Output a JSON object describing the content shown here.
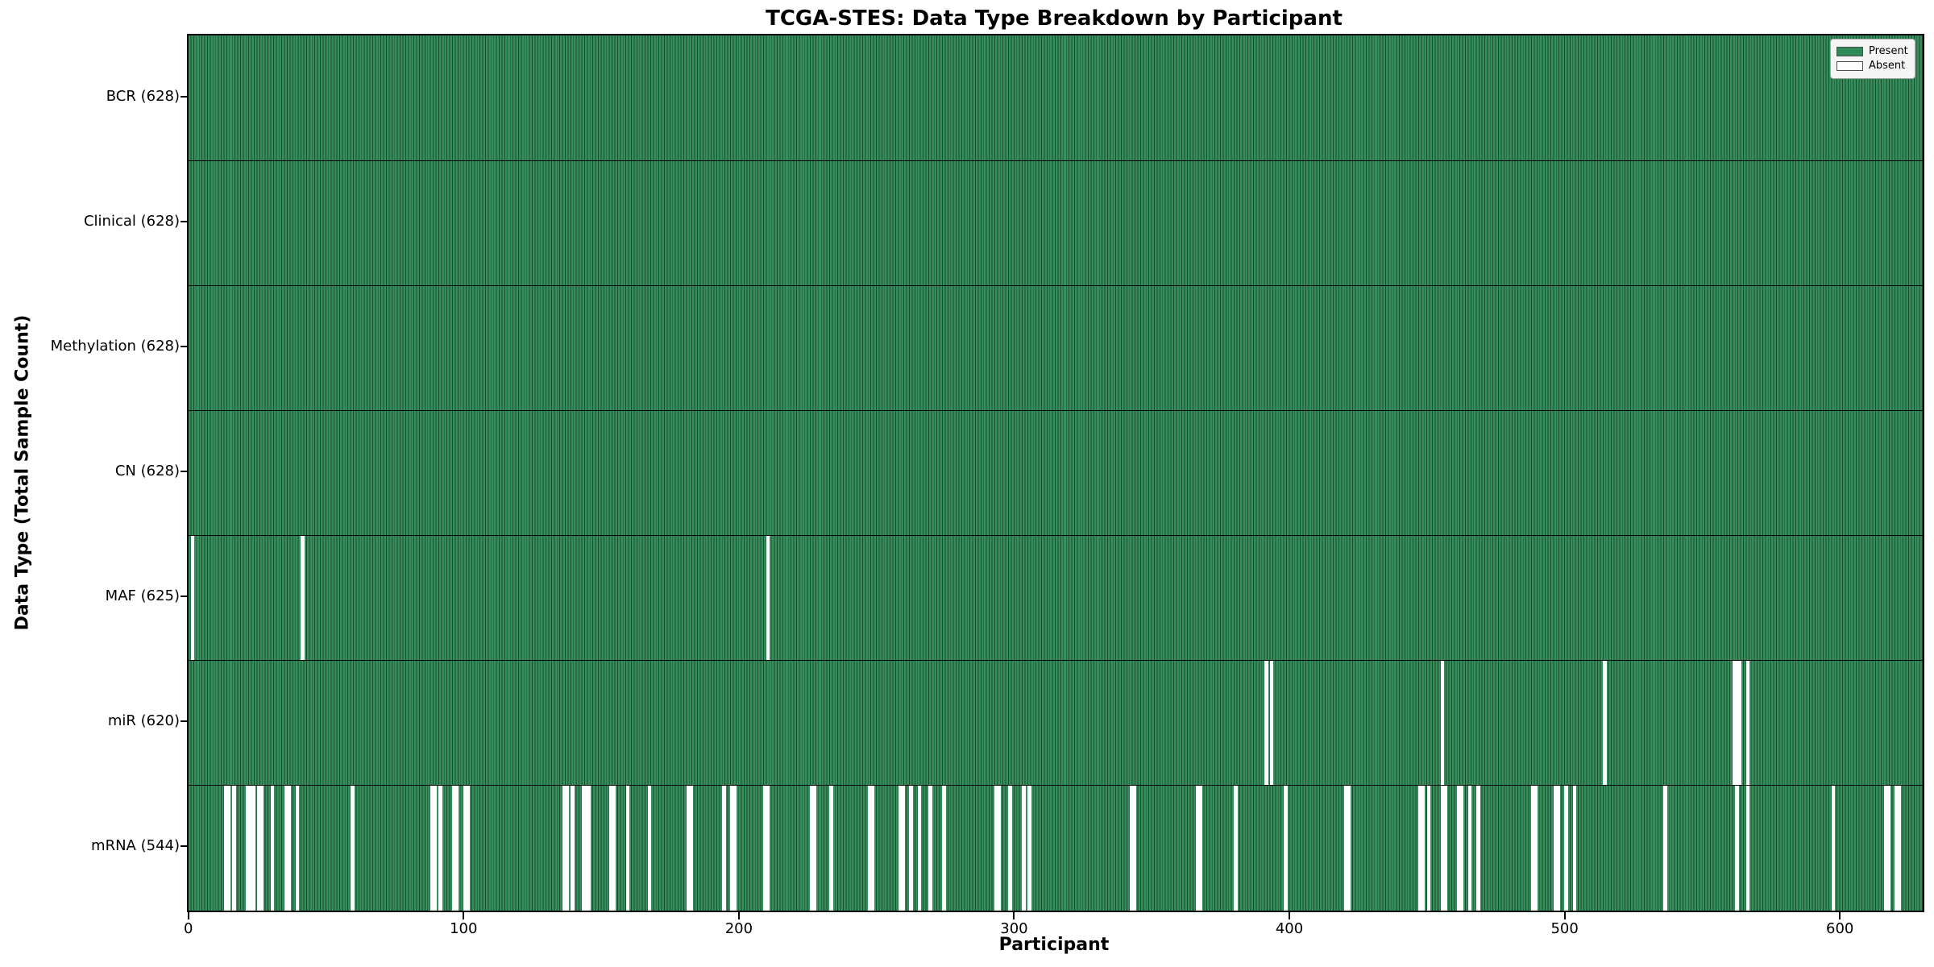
{
  "chart_data": {
    "type": "heatmap",
    "title": "TCGA-STES: Data Type Breakdown by Participant",
    "xlabel": "Participant",
    "ylabel": "Data Type (Total Sample Count)",
    "x_ticks": [
      0,
      100,
      200,
      300,
      400,
      500,
      600
    ],
    "x_min": -0.5,
    "x_max": 629.5,
    "n_participants": 628,
    "grid": false,
    "legend_position": "upper right",
    "legend": [
      {
        "label": "Present",
        "color": "#2e8b57"
      },
      {
        "label": "Absent",
        "color": "#ffffff"
      }
    ],
    "colors": {
      "present_fill": "#368e5d",
      "present_edge": "#194c2d",
      "absent": "#ffffff",
      "separator": "#000000"
    },
    "rows": [
      {
        "name": "BCR",
        "total": 628,
        "label": "BCR (628)",
        "absent": []
      },
      {
        "name": "Clinical",
        "total": 628,
        "label": "Clinical (628)",
        "absent": []
      },
      {
        "name": "Methylation",
        "total": 628,
        "label": "Methylation (628)",
        "absent": []
      },
      {
        "name": "CN",
        "total": 628,
        "label": "CN (628)",
        "absent": []
      },
      {
        "name": "MAF",
        "total": 625,
        "label": "MAF (625)",
        "absent": [
          1,
          41,
          210
        ]
      },
      {
        "name": "miR",
        "total": 620,
        "label": "miR (620)",
        "absent": [
          391,
          393,
          455,
          514,
          561,
          562,
          563,
          566
        ]
      },
      {
        "name": "mRNA",
        "total": 544,
        "label": "mRNA (544)",
        "absent": [
          13,
          14,
          16,
          21,
          22,
          23,
          25,
          26,
          30,
          35,
          36,
          39,
          59,
          88,
          89,
          91,
          96,
          97,
          100,
          101,
          136,
          137,
          139,
          143,
          144,
          145,
          153,
          154,
          159,
          167,
          181,
          182,
          194,
          197,
          198,
          209,
          210,
          226,
          227,
          233,
          247,
          248,
          258,
          259,
          262,
          265,
          269,
          274,
          293,
          294,
          298,
          303,
          305,
          342,
          343,
          366,
          367,
          380,
          398,
          420,
          421,
          447,
          448,
          450,
          455,
          456,
          461,
          462,
          465,
          468,
          488,
          489,
          496,
          497,
          500,
          503,
          536,
          562,
          566,
          597,
          616,
          617,
          620,
          621
        ]
      }
    ]
  }
}
